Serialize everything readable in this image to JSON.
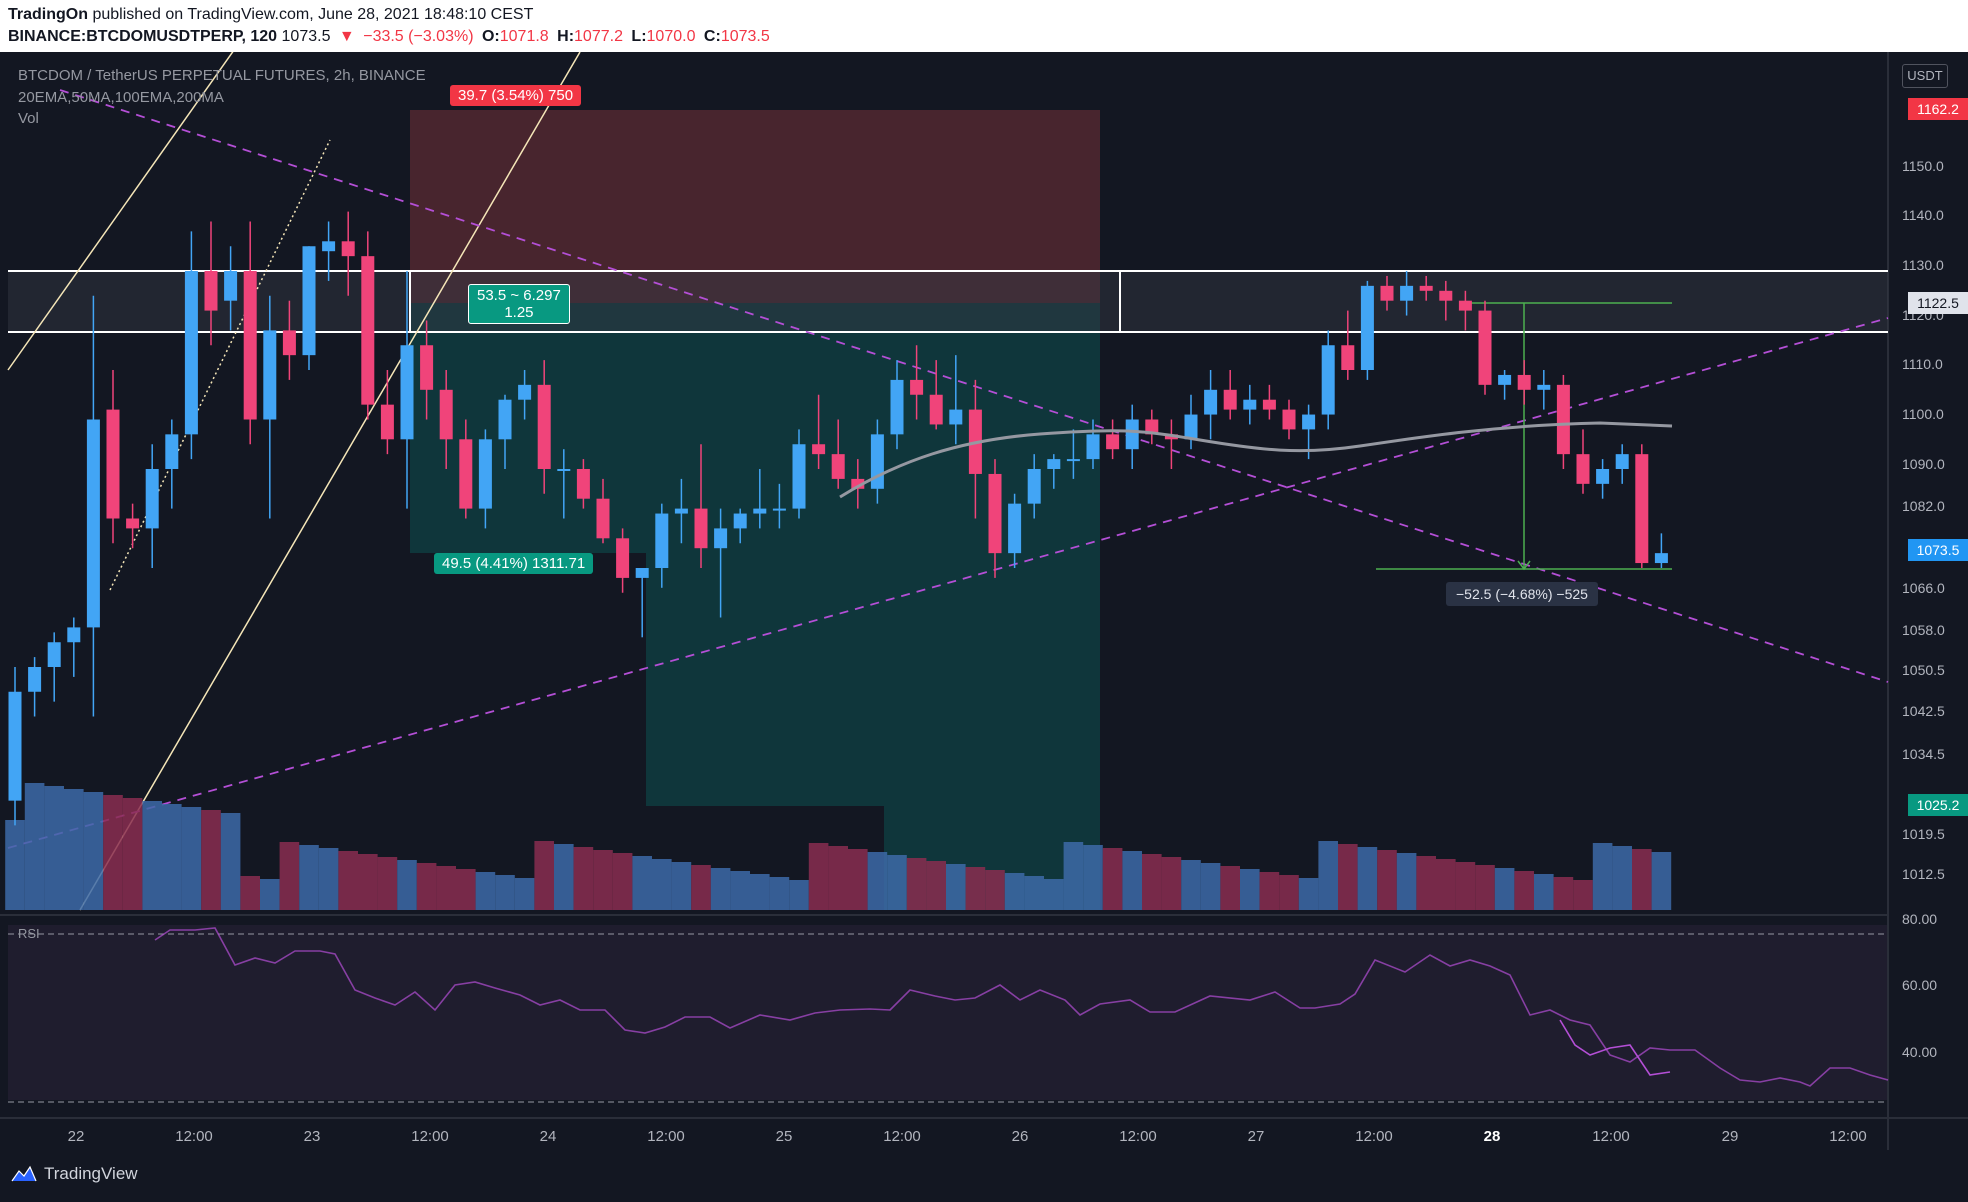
{
  "header": {
    "publisher": "TradingOn",
    "published_text": "published on TradingView.com, June 28, 2021 18:48:10 CEST",
    "symbol_line": "BINANCE:BTCDOMUSDTPERP, 120",
    "last": "1073.5",
    "change": "−33.5 (−3.03%)",
    "open_label": "O:",
    "open": "1071.8",
    "high_label": "H:",
    "high": "1077.2",
    "low_label": "L:",
    "low": "1070.0",
    "close_label": "C:",
    "close": "1073.5"
  },
  "legend": {
    "title": "BTCDOM / TetherUS PERPETUAL FUTURES, 2h, BINANCE",
    "indicators": "20EMA,50MA,100EMA,200MA",
    "volume": "Vol",
    "rsi": "RSI"
  },
  "price_axis": {
    "currency": "USDT",
    "ticks": [
      "1150.0",
      "1140.0",
      "1130.0",
      "1120.0",
      "1110.0",
      "1100.0",
      "1090.0",
      "1082.0",
      "1066.0",
      "1058.0",
      "1050.5",
      "1042.5",
      "1034.5",
      "1019.5",
      "1012.5"
    ],
    "marker_top": "1162.2",
    "marker_zone": "1122.5",
    "marker_last": "1073.5",
    "marker_target": "1025.2"
  },
  "rsi_axis": {
    "ticks": [
      "80.00",
      "60.00",
      "40.00"
    ]
  },
  "time_axis": {
    "labels": [
      "22",
      "12:00",
      "23",
      "12:00",
      "24",
      "12:00",
      "25",
      "12:00",
      "26",
      "12:00",
      "27",
      "12:00",
      "28",
      "12:00",
      "29",
      "12:00"
    ]
  },
  "annotations": {
    "stop_box": "39.7 (3.54%) 750",
    "rr_box_line1": "53.5 ~ 6.297",
    "rr_box_line2": "1.25",
    "target_box": "49.5 (4.41%) 1311.71",
    "measure_box": "−52.5 (−4.68%) −525"
  },
  "colors": {
    "up": "#42a5f5",
    "down": "#f0447a",
    "stop_zone": "#5b2b33",
    "target_zone": "#103a3e",
    "trend_dashed": "#b44fd6",
    "rsi_line": "#b44fd6",
    "accent_red": "#f23645",
    "accent_teal": "#089981"
  },
  "footer": {
    "brand": "TradingView"
  }
}
